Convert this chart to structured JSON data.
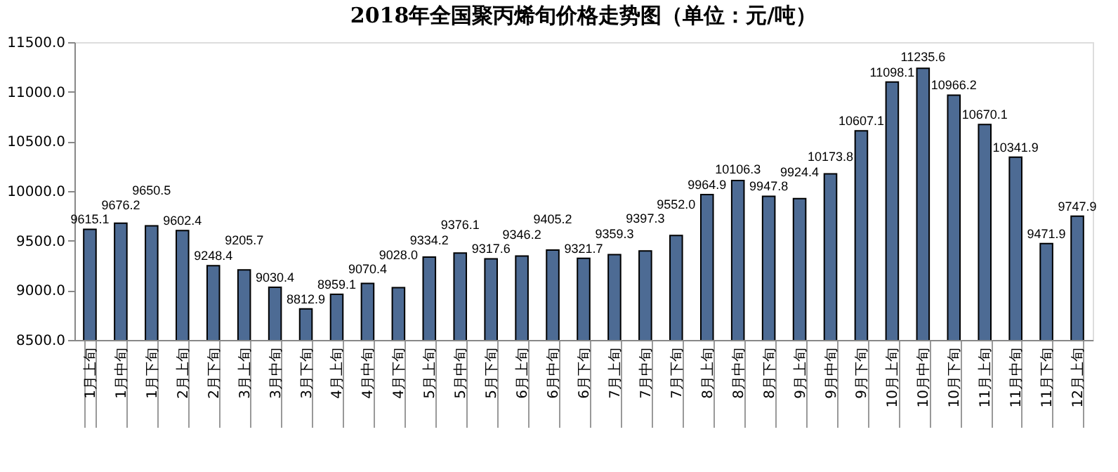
{
  "chart_data": {
    "type": "bar",
    "title": "2018年全国聚丙烯旬价格走势图（单位：元/吨）",
    "categories": [
      "1月上旬",
      "1月中旬",
      "1月下旬",
      "2月上旬",
      "2月下旬",
      "3月上旬",
      "3月中旬",
      "3月下旬",
      "4月上旬",
      "4月中旬",
      "4月下旬",
      "5月上旬",
      "5月中旬",
      "5月下旬",
      "6月上旬",
      "6月中旬",
      "6月下旬",
      "7月上旬",
      "7月中旬",
      "7月下旬",
      "8月上旬",
      "8月中旬",
      "8月下旬",
      "9月上旬",
      "9月中旬",
      "9月下旬",
      "10月上旬",
      "10月中旬",
      "10月下旬",
      "11月上旬",
      "11月中旬",
      "11月下旬",
      "12月上旬"
    ],
    "values": [
      9615.1,
      9676.2,
      9650.5,
      9602.4,
      9248.4,
      9205.7,
      9030.4,
      8812.9,
      8959.1,
      9070.4,
      9028.0,
      9334.2,
      9376.1,
      9317.6,
      9346.2,
      9405.2,
      9321.7,
      9359.3,
      9397.3,
      9552.0,
      9964.9,
      10106.3,
      9947.8,
      9924.4,
      10173.8,
      10607.1,
      11098.1,
      11235.6,
      10966.2,
      10670.1,
      10341.9,
      9471.9,
      9747.9
    ],
    "value_labels": [
      "9615.1",
      "9676.2",
      "9650.5",
      "9602.4",
      "9248.4",
      "9205.7",
      "9030.4",
      "8812.9",
      "8959.1",
      "9070.4",
      "9028.0",
      "9334.2",
      "9376.1",
      "9317.6",
      "9346.2",
      "9405.2",
      "9321.7",
      "9359.3",
      "9397.3",
      "9552.0",
      "9964.9",
      "10106.3",
      "9947.8",
      "9924.4",
      "10173.8",
      "10607.1",
      "11098.1",
      "11235.6",
      "10966.2",
      "10670.1",
      "10341.9",
      "9471.9",
      "9747.9"
    ],
    "color": "#4d6b94",
    "ylim": [
      8500,
      11500
    ],
    "yticks": [
      {
        "value": 8500,
        "label": "8500.0"
      },
      {
        "value": 9000,
        "label": "9000.0"
      },
      {
        "value": 9500,
        "label": "9500.0"
      },
      {
        "value": 10000,
        "label": "10000.0"
      },
      {
        "value": 10500,
        "label": "10500.0"
      },
      {
        "value": 11000,
        "label": "11000.0"
      },
      {
        "value": 11500,
        "label": "11500.0"
      }
    ]
  }
}
